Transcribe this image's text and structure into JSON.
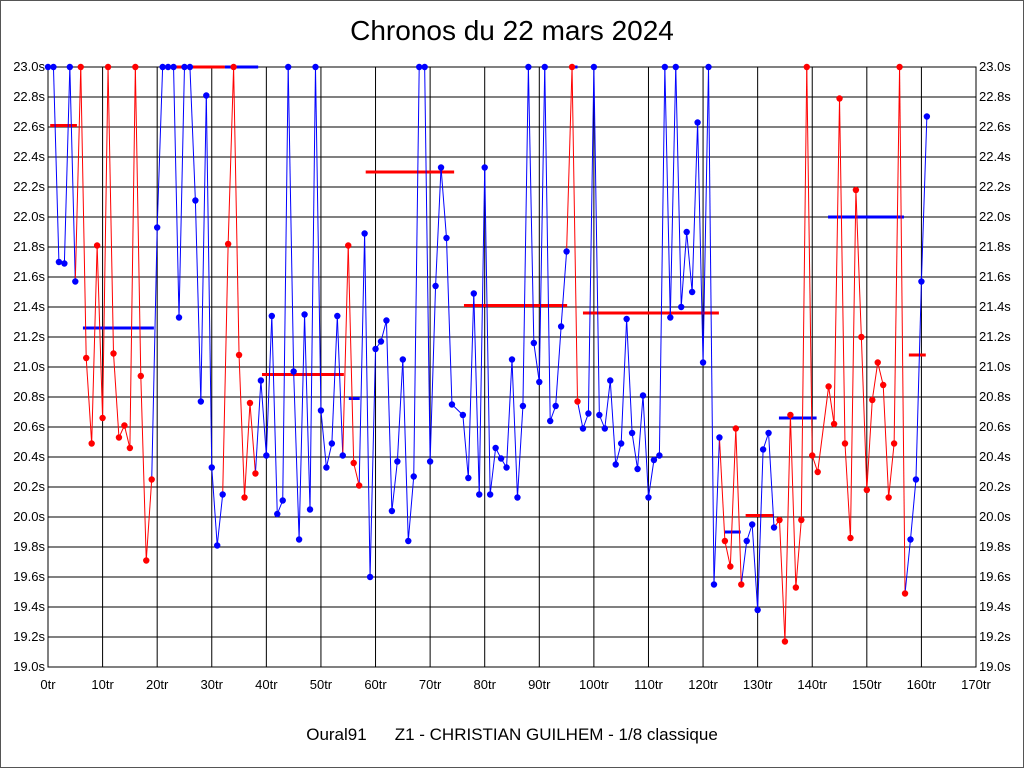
{
  "chart_data": {
    "type": "line",
    "title": "Chronos du 22 mars 2024",
    "footer_left": "Oural91",
    "footer_right": "Z1 - CHRISTIAN GUILHEM - 1/8 classique",
    "xlabel": "",
    "ylabel": "",
    "xlim": [
      0,
      170
    ],
    "ylim": [
      19.0,
      23.0
    ],
    "x_ticks": [
      "0tr",
      "10tr",
      "20tr",
      "30tr",
      "40tr",
      "50tr",
      "60tr",
      "70tr",
      "80tr",
      "90tr",
      "100tr",
      "110tr",
      "120tr",
      "130tr",
      "140tr",
      "150tr",
      "160tr",
      "170tr"
    ],
    "y_ticks": [
      "23.0s",
      "22.8s",
      "22.6s",
      "22.4s",
      "22.2s",
      "22.0s",
      "21.8s",
      "21.6s",
      "21.4s",
      "21.2s",
      "21.0s",
      "20.8s",
      "20.6s",
      "20.4s",
      "20.2s",
      "20.0s",
      "19.8s",
      "19.6s",
      "19.4s",
      "19.2s",
      "19.0s"
    ],
    "grid": true,
    "colors": {
      "b": "#0000ff",
      "r": "#ff0000"
    },
    "points": [
      [
        0,
        23.0,
        "b"
      ],
      [
        1,
        23.0,
        "b"
      ],
      [
        2,
        21.7,
        "b"
      ],
      [
        3,
        21.69,
        "b"
      ],
      [
        4,
        23.0,
        "b"
      ],
      [
        5,
        21.57,
        "b"
      ],
      [
        6,
        23.0,
        "r"
      ],
      [
        7,
        21.06,
        "r"
      ],
      [
        8,
        20.49,
        "r"
      ],
      [
        9,
        21.81,
        "r"
      ],
      [
        10,
        20.66,
        "r"
      ],
      [
        11,
        23.0,
        "r"
      ],
      [
        12,
        21.09,
        "r"
      ],
      [
        13,
        20.53,
        "r"
      ],
      [
        14,
        20.61,
        "r"
      ],
      [
        15,
        20.46,
        "r"
      ],
      [
        16,
        23.0,
        "r"
      ],
      [
        17,
        20.94,
        "r"
      ],
      [
        18,
        19.71,
        "r"
      ],
      [
        19,
        20.25,
        "r"
      ],
      [
        20,
        21.93,
        "b"
      ],
      [
        21,
        23.0,
        "b"
      ],
      [
        22,
        23.0,
        "b"
      ],
      [
        23,
        23.0,
        "b"
      ],
      [
        24,
        21.33,
        "b"
      ],
      [
        25,
        23.0,
        "b"
      ],
      [
        26,
        23.0,
        "b"
      ],
      [
        27,
        22.11,
        "b"
      ],
      [
        28,
        20.77,
        "b"
      ],
      [
        29,
        22.81,
        "b"
      ],
      [
        30,
        20.33,
        "b"
      ],
      [
        31,
        19.81,
        "b"
      ],
      [
        32,
        20.15,
        "b"
      ],
      [
        33,
        21.82,
        "r"
      ],
      [
        34,
        23.0,
        "r"
      ],
      [
        35,
        21.08,
        "r"
      ],
      [
        36,
        20.13,
        "r"
      ],
      [
        37,
        20.76,
        "r"
      ],
      [
        38,
        20.29,
        "r"
      ],
      [
        39,
        20.91,
        "b"
      ],
      [
        40,
        20.41,
        "b"
      ],
      [
        41,
        21.34,
        "b"
      ],
      [
        42,
        20.02,
        "b"
      ],
      [
        43,
        20.11,
        "b"
      ],
      [
        44,
        23.0,
        "b"
      ],
      [
        45,
        20.97,
        "b"
      ],
      [
        46,
        19.85,
        "b"
      ],
      [
        47,
        21.35,
        "b"
      ],
      [
        48,
        20.05,
        "b"
      ],
      [
        49,
        23.0,
        "b"
      ],
      [
        50,
        20.71,
        "b"
      ],
      [
        51,
        20.33,
        "b"
      ],
      [
        52,
        20.49,
        "b"
      ],
      [
        53,
        21.34,
        "b"
      ],
      [
        54,
        20.41,
        "b"
      ],
      [
        55,
        21.81,
        "r"
      ],
      [
        56,
        20.36,
        "r"
      ],
      [
        57,
        20.21,
        "r"
      ],
      [
        58,
        21.89,
        "b"
      ],
      [
        59,
        19.6,
        "b"
      ],
      [
        60,
        21.12,
        "b"
      ],
      [
        61,
        21.17,
        "b"
      ],
      [
        62,
        21.31,
        "b"
      ],
      [
        63,
        20.04,
        "b"
      ],
      [
        64,
        20.37,
        "b"
      ],
      [
        65,
        21.05,
        "b"
      ],
      [
        66,
        19.84,
        "b"
      ],
      [
        67,
        20.27,
        "b"
      ],
      [
        68,
        23.0,
        "b"
      ],
      [
        69,
        23.0,
        "b"
      ],
      [
        70,
        20.37,
        "b"
      ],
      [
        71,
        21.54,
        "b"
      ],
      [
        72,
        22.33,
        "b"
      ],
      [
        73,
        21.86,
        "b"
      ],
      [
        74,
        20.75,
        "b"
      ],
      [
        76,
        20.68,
        "b"
      ],
      [
        77,
        20.26,
        "b"
      ],
      [
        78,
        21.49,
        "b"
      ],
      [
        79,
        20.15,
        "b"
      ],
      [
        80,
        22.33,
        "b"
      ],
      [
        81,
        20.15,
        "b"
      ],
      [
        82,
        20.46,
        "b"
      ],
      [
        83,
        20.39,
        "b"
      ],
      [
        84,
        20.33,
        "b"
      ],
      [
        85,
        21.05,
        "b"
      ],
      [
        86,
        20.13,
        "b"
      ],
      [
        87,
        20.74,
        "b"
      ],
      [
        88,
        23.0,
        "b"
      ],
      [
        89,
        21.16,
        "b"
      ],
      [
        90,
        20.9,
        "b"
      ],
      [
        91,
        23.0,
        "b"
      ],
      [
        92,
        20.64,
        "b"
      ],
      [
        93,
        20.74,
        "b"
      ],
      [
        94,
        21.27,
        "b"
      ],
      [
        95,
        21.77,
        "b"
      ],
      [
        96,
        23.0,
        "r"
      ],
      [
        97,
        20.77,
        "r"
      ],
      [
        98,
        20.59,
        "b"
      ],
      [
        99,
        20.69,
        "b"
      ],
      [
        100,
        23.0,
        "b"
      ],
      [
        101,
        20.68,
        "b"
      ],
      [
        102,
        20.59,
        "b"
      ],
      [
        103,
        20.91,
        "b"
      ],
      [
        104,
        20.35,
        "b"
      ],
      [
        105,
        20.49,
        "b"
      ],
      [
        106,
        21.32,
        "b"
      ],
      [
        107,
        20.56,
        "b"
      ],
      [
        108,
        20.32,
        "b"
      ],
      [
        109,
        20.81,
        "b"
      ],
      [
        110,
        20.13,
        "b"
      ],
      [
        111,
        20.38,
        "b"
      ],
      [
        112,
        20.41,
        "b"
      ],
      [
        113,
        23.0,
        "b"
      ],
      [
        114,
        21.33,
        "b"
      ],
      [
        115,
        23.0,
        "b"
      ],
      [
        116,
        21.4,
        "b"
      ],
      [
        117,
        21.9,
        "b"
      ],
      [
        118,
        21.5,
        "b"
      ],
      [
        119,
        22.63,
        "b"
      ],
      [
        120,
        21.03,
        "b"
      ],
      [
        121,
        23.0,
        "b"
      ],
      [
        122,
        19.55,
        "b"
      ],
      [
        123,
        20.53,
        "b"
      ],
      [
        124,
        19.84,
        "r"
      ],
      [
        125,
        19.67,
        "r"
      ],
      [
        126,
        20.59,
        "r"
      ],
      [
        127,
        19.55,
        "r"
      ],
      [
        128,
        19.84,
        "b"
      ],
      [
        129,
        19.95,
        "b"
      ],
      [
        130,
        19.38,
        "b"
      ],
      [
        131,
        20.45,
        "b"
      ],
      [
        132,
        20.56,
        "b"
      ],
      [
        133,
        19.93,
        "b"
      ],
      [
        134,
        19.98,
        "r"
      ],
      [
        135,
        19.17,
        "r"
      ],
      [
        136,
        20.68,
        "r"
      ],
      [
        137,
        19.53,
        "r"
      ],
      [
        138,
        19.98,
        "r"
      ],
      [
        139,
        23.0,
        "r"
      ],
      [
        140,
        20.41,
        "r"
      ],
      [
        141,
        20.3,
        "r"
      ],
      [
        143,
        20.87,
        "r"
      ],
      [
        144,
        20.62,
        "r"
      ],
      [
        145,
        22.79,
        "r"
      ],
      [
        146,
        20.49,
        "r"
      ],
      [
        147,
        19.86,
        "r"
      ],
      [
        148,
        22.18,
        "r"
      ],
      [
        149,
        21.2,
        "r"
      ],
      [
        150,
        20.18,
        "r"
      ],
      [
        151,
        20.78,
        "r"
      ],
      [
        152,
        21.03,
        "r"
      ],
      [
        153,
        20.88,
        "r"
      ],
      [
        154,
        20.13,
        "r"
      ],
      [
        155,
        20.49,
        "r"
      ],
      [
        156,
        23.0,
        "r"
      ],
      [
        157,
        19.49,
        "r"
      ],
      [
        158,
        19.85,
        "b"
      ],
      [
        159,
        20.25,
        "b"
      ],
      [
        160,
        21.57,
        "b"
      ],
      [
        161,
        22.67,
        "b"
      ]
    ],
    "stint_averages": [
      [
        0.4,
        5.3,
        22.61,
        "r"
      ],
      [
        6.4,
        19.4,
        21.26,
        "b"
      ],
      [
        21.4,
        32.4,
        23.0,
        "r"
      ],
      [
        32.4,
        38.5,
        23.0,
        "b"
      ],
      [
        39.2,
        54.2,
        20.95,
        "r"
      ],
      [
        55.1,
        57.1,
        20.79,
        "b"
      ],
      [
        58.2,
        74.4,
        22.3,
        "r"
      ],
      [
        76.2,
        95.1,
        21.41,
        "r"
      ],
      [
        96,
        97,
        23.0,
        "b"
      ],
      [
        98,
        122.9,
        21.36,
        "r"
      ],
      [
        124,
        126.9,
        19.9,
        "b"
      ],
      [
        127.8,
        133,
        20.01,
        "r"
      ],
      [
        133.9,
        140.8,
        20.66,
        "b"
      ],
      [
        142.9,
        156.8,
        22.0,
        "b"
      ],
      [
        157.7,
        160.8,
        21.08,
        "r"
      ]
    ]
  }
}
